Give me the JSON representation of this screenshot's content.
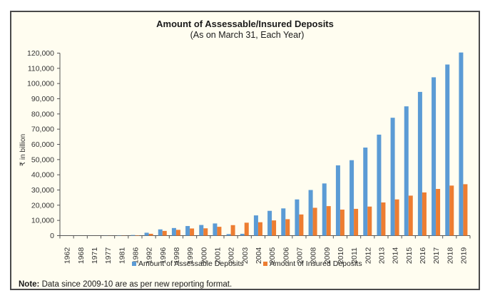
{
  "chart_data": {
    "type": "bar",
    "title": "Amount of Assessable/Insured Deposits",
    "subtitle": "(As on March 31, Each Year)",
    "xlabel": "",
    "ylabel": "₹ in billion",
    "ylim": [
      0,
      120000
    ],
    "yticks": [
      0,
      10000,
      20000,
      30000,
      40000,
      50000,
      60000,
      70000,
      80000,
      90000,
      100000,
      110000,
      120000
    ],
    "ytick_labels": [
      "0",
      "10,000",
      "20,000",
      "30,000",
      "40,000",
      "50,000",
      "60,000",
      "70,000",
      "80,000",
      "90,000",
      "100,000",
      "110,000",
      "120,000"
    ],
    "grid": false,
    "legend_position": "bottom",
    "categories": [
      "1962",
      "1968",
      "1971",
      "1977",
      "1981",
      "1986",
      "1992",
      "1996",
      "1998",
      "1999",
      "2000",
      "2001",
      "2002",
      "2003",
      "2004",
      "2005",
      "2006",
      "2007",
      "2008",
      "2009",
      "2010",
      "2011",
      "2012",
      "2013",
      "2014",
      "2015",
      "2016",
      "2017",
      "2018",
      "2019"
    ],
    "series": [
      {
        "name": "Amount of Assessable Deposits",
        "color": "#5b9bd5",
        "values": [
          5,
          10,
          20,
          60,
          150,
          400,
          1900,
          4100,
          5000,
          6300,
          7000,
          8000,
          1000,
          1200,
          13300,
          16300,
          17900,
          23800,
          30000,
          34300,
          46200,
          49600,
          57900,
          66400,
          77500,
          85000,
          94500,
          104100,
          112500,
          120400
        ]
      },
      {
        "name": "Amount of Insured Deposits",
        "color": "#ed7d31",
        "values": [
          3,
          6,
          12,
          40,
          100,
          250,
          1200,
          3100,
          3800,
          4700,
          4800,
          5800,
          6900,
          8500,
          8800,
          10000,
          10800,
          13900,
          18300,
          19400,
          17100,
          17600,
          19100,
          21800,
          23800,
          26300,
          28400,
          30700,
          32900,
          33800
        ]
      }
    ]
  },
  "note": {
    "label": "Note:",
    "text": " Data since 2009-10 are as per new reporting format."
  }
}
